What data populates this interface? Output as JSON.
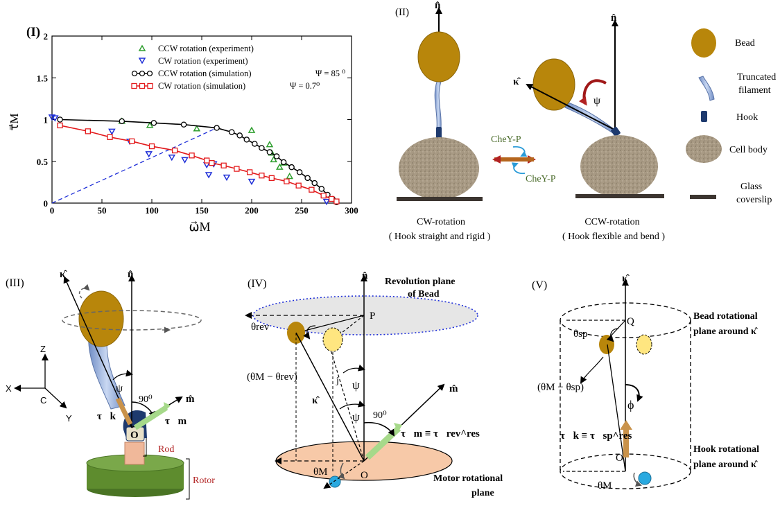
{
  "panel_labels": {
    "p1": "(I)",
    "p2": "(II)",
    "p3": "(III)",
    "p4": "(IV)",
    "p5": "(V)"
  },
  "colors": {
    "bead": "#b8860b",
    "bead_light": "#ffe680",
    "cell": "#a89a84",
    "filament": "#8fa8d8",
    "hook": "#1e3a6e",
    "rotor": "#5e8c2e",
    "rod": "#f0b89a",
    "torque_green": "#a6d98a",
    "torque_brown": "#c9924a",
    "motor_plane": "#f7c9a8",
    "bead_plane": "#e6e6e6",
    "ccw_exp": "#2e9e2e",
    "cw_exp": "#1f2fd8",
    "ccw_sim": "#000000",
    "cw_sim": "#e31a1c"
  },
  "chart_data": {
    "type": "line",
    "title": "",
    "xlabel": "ω⃗M",
    "ylabel": "τ⃗M",
    "xlim": [
      0,
      300
    ],
    "ylim": [
      0,
      2
    ],
    "xticks": [
      "0",
      "50",
      "100",
      "150",
      "200",
      "250",
      "300"
    ],
    "yticks": [
      "0",
      "0.5",
      "1",
      "1.5",
      "2"
    ],
    "legend_position": "top-right",
    "series": [
      {
        "name": "CCW rotation (experiment)",
        "marker": "triangle-up",
        "color": "#2e9e2e",
        "x": [
          70,
          98,
          145,
          200,
          218,
          220,
          222,
          228,
          232,
          238
        ],
        "y": [
          0.98,
          0.93,
          0.89,
          0.87,
          0.7,
          0.6,
          0.52,
          0.43,
          0.48,
          0.32
        ]
      },
      {
        "name": "CW  rotation (experiment)",
        "marker": "triangle-down",
        "color": "#1f2fd8",
        "x": [
          0,
          3,
          60,
          78,
          97,
          120,
          133,
          155,
          157,
          162,
          175,
          200,
          275
        ],
        "y": [
          1.03,
          1.02,
          0.86,
          0.74,
          0.59,
          0.55,
          0.52,
          0.46,
          0.34,
          0.47,
          0.31,
          0.26,
          0.02
        ]
      },
      {
        "name": "CCW rotation (simulation)",
        "extra": "Ψ = 85 ⁰",
        "marker": "circle",
        "color": "#000000",
        "x": [
          8,
          70,
          102,
          132,
          165,
          180,
          188,
          195,
          203,
          210,
          218,
          225,
          232,
          240,
          248,
          256,
          263,
          270,
          276,
          281,
          285
        ],
        "y": [
          1.0,
          0.98,
          0.96,
          0.94,
          0.9,
          0.85,
          0.81,
          0.76,
          0.71,
          0.66,
          0.61,
          0.56,
          0.49,
          0.43,
          0.37,
          0.3,
          0.24,
          0.17,
          0.1,
          0.05,
          0.01
        ]
      },
      {
        "name": "CW rotation (simulation)",
        "extra": "Ψ = 0.7⁰",
        "marker": "square",
        "color": "#e31a1c",
        "x": [
          8,
          36,
          58,
          80,
          100,
          123,
          140,
          155,
          160,
          172,
          185,
          198,
          210,
          220,
          235,
          247,
          260,
          272,
          280,
          285
        ],
        "y": [
          0.93,
          0.86,
          0.79,
          0.74,
          0.68,
          0.63,
          0.57,
          0.51,
          0.48,
          0.45,
          0.41,
          0.37,
          0.33,
          0.3,
          0.26,
          0.21,
          0.16,
          0.09,
          0.05,
          0.02
        ]
      }
    ],
    "guide_line": {
      "x": [
        0,
        165
      ],
      "y": [
        0,
        0.9
      ],
      "style": "dashed",
      "color": "#1f2fd8"
    }
  },
  "panel2": {
    "n_hat": "n̂",
    "kappa_hat": "κ̂",
    "psi": "ψ",
    "chey1": "CheY-P",
    "chey2": "CheY-P",
    "cw_caption1": "CW-rotation",
    "cw_caption2": "( Hook straight and rigid )",
    "ccw_caption1": "CCW-rotation",
    "ccw_caption2": "( Hook flexible and bend )",
    "legend": [
      {
        "label": "Bead"
      },
      {
        "label": "Truncated",
        "label2": "filament"
      },
      {
        "label": "Hook"
      },
      {
        "label": "Cell body"
      },
      {
        "label": "Glass",
        "label2": "coverslip"
      }
    ]
  },
  "panel3": {
    "kappa": "κ̂",
    "n": "n̂",
    "psi": "ψ",
    "angle": "90⁰",
    "m": "m̂",
    "tau_k": "τ⃗k",
    "tau_m": "τ⃗m",
    "O": "O",
    "Z": "Z",
    "X": "X",
    "Y": "Y",
    "C": "C",
    "rod": "Rod",
    "rotor": "Rotor"
  },
  "panel4": {
    "revolution_plane1": "Revolution plane",
    "revolution_plane2": "of Bead",
    "n": "n̂",
    "P": "P",
    "theta_rev": "θrev",
    "diff": "(θM − θrev)",
    "j": "j",
    "psi1": "ψ",
    "psi2": "ψ",
    "kappa": "κ̂",
    "angle": "90⁰",
    "m": "m̂",
    "tau_eq": "τ⃗m ≡ τ⃗rev^res",
    "theta_M": "θM",
    "O": "O",
    "motor_plane1": "Motor rotational",
    "motor_plane2": "plane"
  },
  "panel5": {
    "kappa": "κ̂",
    "Q": "Q",
    "theta_sp": "θsp",
    "diff": "(θM − θsp)",
    "phi": "ϕ",
    "tau_eq": "τ⃗k ≡ τ⃗sp^res",
    "O": "O",
    "theta_M": "θM",
    "bead_plane1": "Bead rotational",
    "bead_plane2": "plane around κ̂",
    "hook_plane1": "Hook rotational",
    "hook_plane2": "plane around κ̂"
  }
}
